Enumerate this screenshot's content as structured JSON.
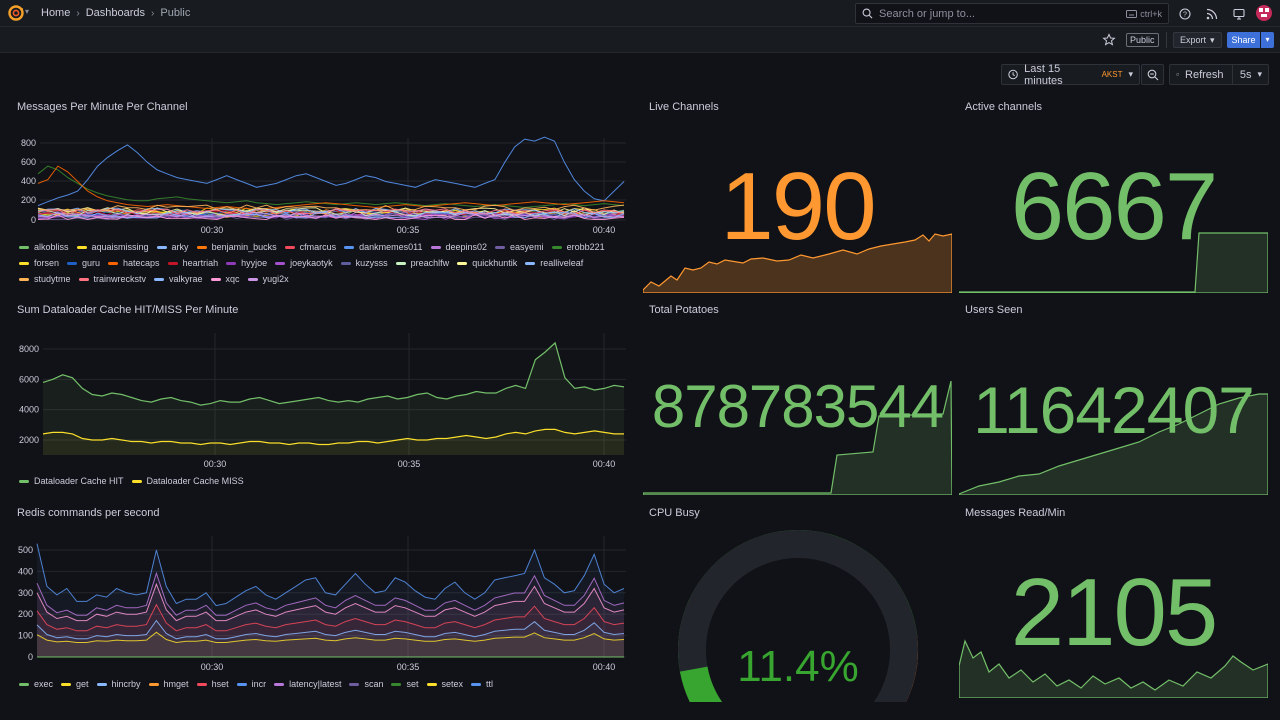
{
  "topbar": {
    "breadcrumbs": [
      "Home",
      "Dashboards",
      "Public"
    ],
    "search_placeholder": "Search or jump to...",
    "search_shortcut": "ctrl+k",
    "icons": [
      "help-icon",
      "rss-icon",
      "monitor-icon"
    ]
  },
  "toolbar": {
    "tag": "Public",
    "export_label": "Export",
    "share_label": "Share",
    "time_range": "Last 15 minutes",
    "timezone": "AKST",
    "refresh_label": "Refresh",
    "refresh_interval": "5s"
  },
  "panels": {
    "messages_per_minute": {
      "title": "Messages Per Minute Per Channel",
      "yticks": [
        "800",
        "600",
        "400",
        "200",
        "0"
      ],
      "xticks": [
        "00:30",
        "00:35",
        "00:40"
      ],
      "legend": [
        {
          "name": "alkobliss",
          "color": "#73bf69"
        },
        {
          "name": "aquaismissing",
          "color": "#fade2a"
        },
        {
          "name": "arky",
          "color": "#8ab8ff"
        },
        {
          "name": "benjamin_bucks",
          "color": "#ff780a"
        },
        {
          "name": "cfmarcus",
          "color": "#f2495c"
        },
        {
          "name": "dankmemes011",
          "color": "#5794f2"
        },
        {
          "name": "deepins02",
          "color": "#b877d9"
        },
        {
          "name": "easyemi",
          "color": "#705da0"
        },
        {
          "name": "erobb221",
          "color": "#37872d"
        },
        {
          "name": "forsen",
          "color": "#fade2a"
        },
        {
          "name": "guru",
          "color": "#1f60c4"
        },
        {
          "name": "hatecaps",
          "color": "#fa6400"
        },
        {
          "name": "heartriah",
          "color": "#c4162a"
        },
        {
          "name": "hyyjoe",
          "color": "#8f3bb8"
        },
        {
          "name": "joeykaotyk",
          "color": "#a352cc"
        },
        {
          "name": "kuzysss",
          "color": "#5e5e9e"
        },
        {
          "name": "preachlfw",
          "color": "#c8f2c2"
        },
        {
          "name": "quickhuntik",
          "color": "#fff899"
        },
        {
          "name": "realliveleaf",
          "color": "#8ab8ff"
        },
        {
          "name": "studytme",
          "color": "#ffb357"
        },
        {
          "name": "trainwreckstv",
          "color": "#ff7383"
        },
        {
          "name": "valkyrae",
          "color": "#8ab8ff"
        },
        {
          "name": "xqc",
          "color": "#ff99d8"
        },
        {
          "name": "yugi2x",
          "color": "#ca95e5"
        }
      ]
    },
    "dataloader": {
      "title": "Sum Dataloader Cache HIT/MISS Per Minute",
      "yticks": [
        "8000",
        "6000",
        "4000",
        "2000"
      ],
      "xticks": [
        "00:30",
        "00:35",
        "00:40"
      ],
      "legend": [
        {
          "name": "Dataloader Cache HIT",
          "color": "#73bf69"
        },
        {
          "name": "Dataloader Cache MISS",
          "color": "#fade2a"
        }
      ]
    },
    "redis": {
      "title": "Redis commands per second",
      "yticks": [
        "500",
        "400",
        "300",
        "200",
        "100",
        "0"
      ],
      "xticks": [
        "00:30",
        "00:35",
        "00:40"
      ],
      "legend": [
        {
          "name": "exec",
          "color": "#73bf69"
        },
        {
          "name": "get",
          "color": "#fade2a"
        },
        {
          "name": "hincrby",
          "color": "#8ab8ff"
        },
        {
          "name": "hmget",
          "color": "#ff9830"
        },
        {
          "name": "hset",
          "color": "#f2495c"
        },
        {
          "name": "incr",
          "color": "#5794f2"
        },
        {
          "name": "latency|latest",
          "color": "#b877d9"
        },
        {
          "name": "scan",
          "color": "#705da0"
        },
        {
          "name": "set",
          "color": "#37872d"
        },
        {
          "name": "setex",
          "color": "#fade2a"
        },
        {
          "name": "ttl",
          "color": "#5794f2"
        }
      ]
    },
    "live_channels": {
      "title": "Live Channels",
      "value": "190",
      "color": "#ff9830"
    },
    "active_channels": {
      "title": "Active channels",
      "value": "6667",
      "color": "#73bf69"
    },
    "total_potatoes": {
      "title": "Total Potatoes",
      "value": "878783544",
      "color": "#73bf69"
    },
    "users_seen": {
      "title": "Users Seen",
      "value": "11642407",
      "color": "#73bf69"
    },
    "cpu_busy": {
      "title": "CPU Busy",
      "value": "11.4%",
      "percent": 11.4,
      "color": "#37a52f"
    },
    "messages_read": {
      "title": "Messages Read/Min",
      "value": "2105",
      "color": "#73bf69"
    }
  }
}
